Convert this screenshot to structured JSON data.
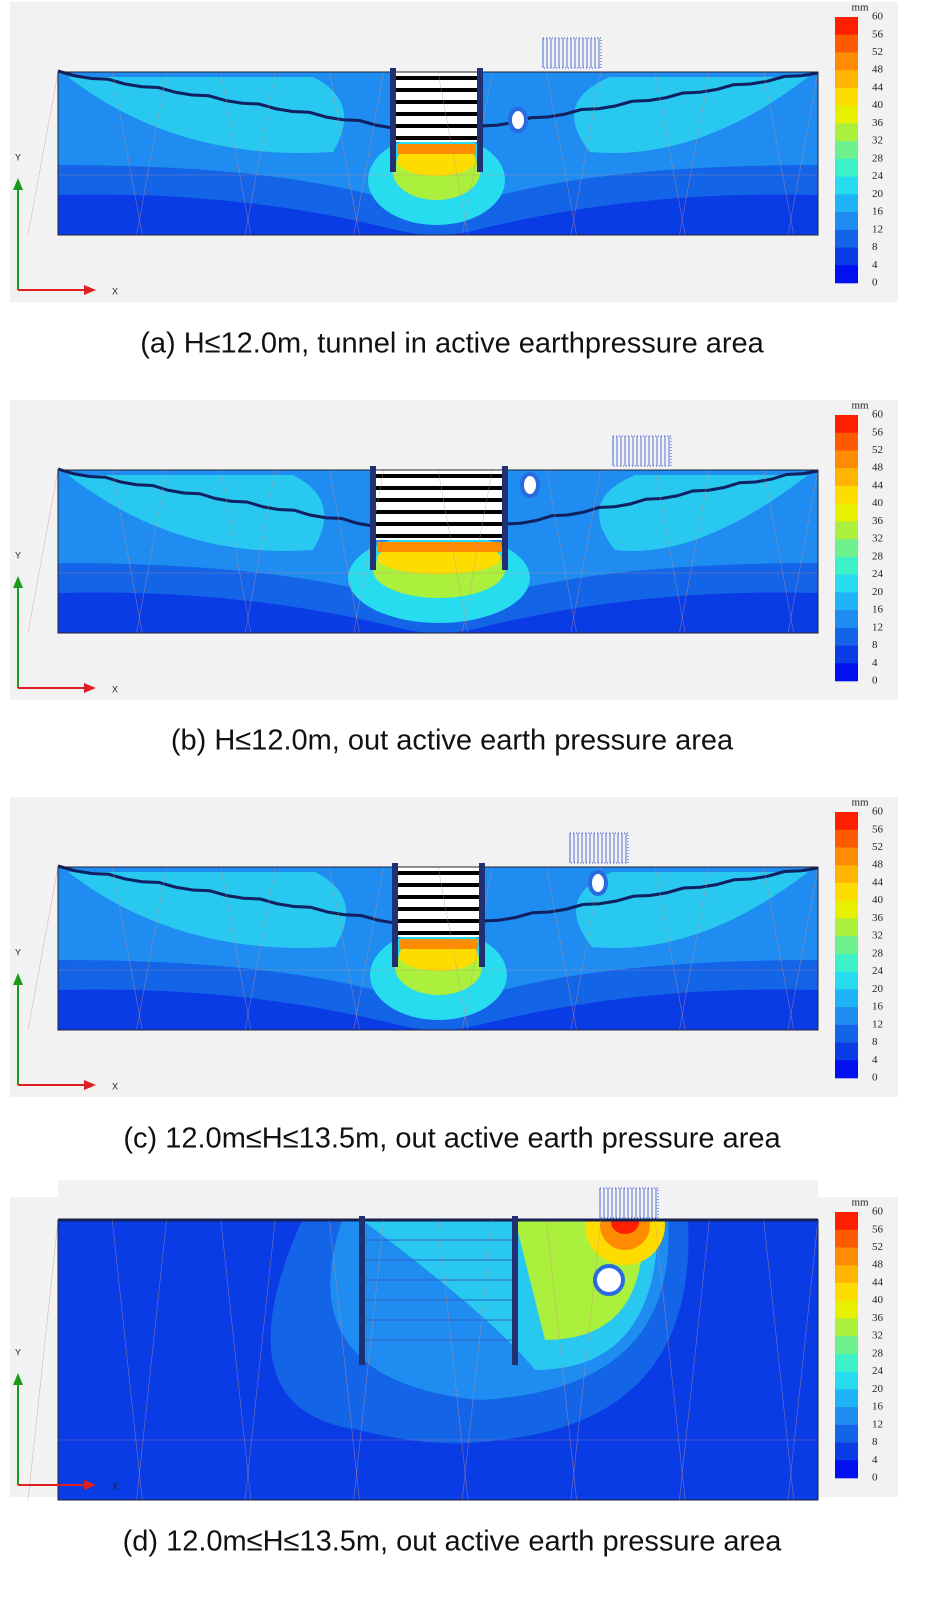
{
  "legend": {
    "unit": "mm",
    "ticks": [
      60,
      56,
      52,
      48,
      44,
      40,
      36,
      32,
      28,
      24,
      20,
      16,
      12,
      8,
      4,
      0
    ]
  },
  "axes": {
    "x": "X",
    "y": "Y"
  },
  "panels": [
    {
      "caption": "(a) H≤12.0m, tunnel in active earthpressure area"
    },
    {
      "caption": "(b) H≤12.0m, out active earth pressure area"
    },
    {
      "caption": "(c) 12.0m≤H≤13.5m, out active earth pressure area"
    },
    {
      "caption": "(d) 12.0m≤H≤13.5m, out active earth pressure area"
    }
  ]
}
